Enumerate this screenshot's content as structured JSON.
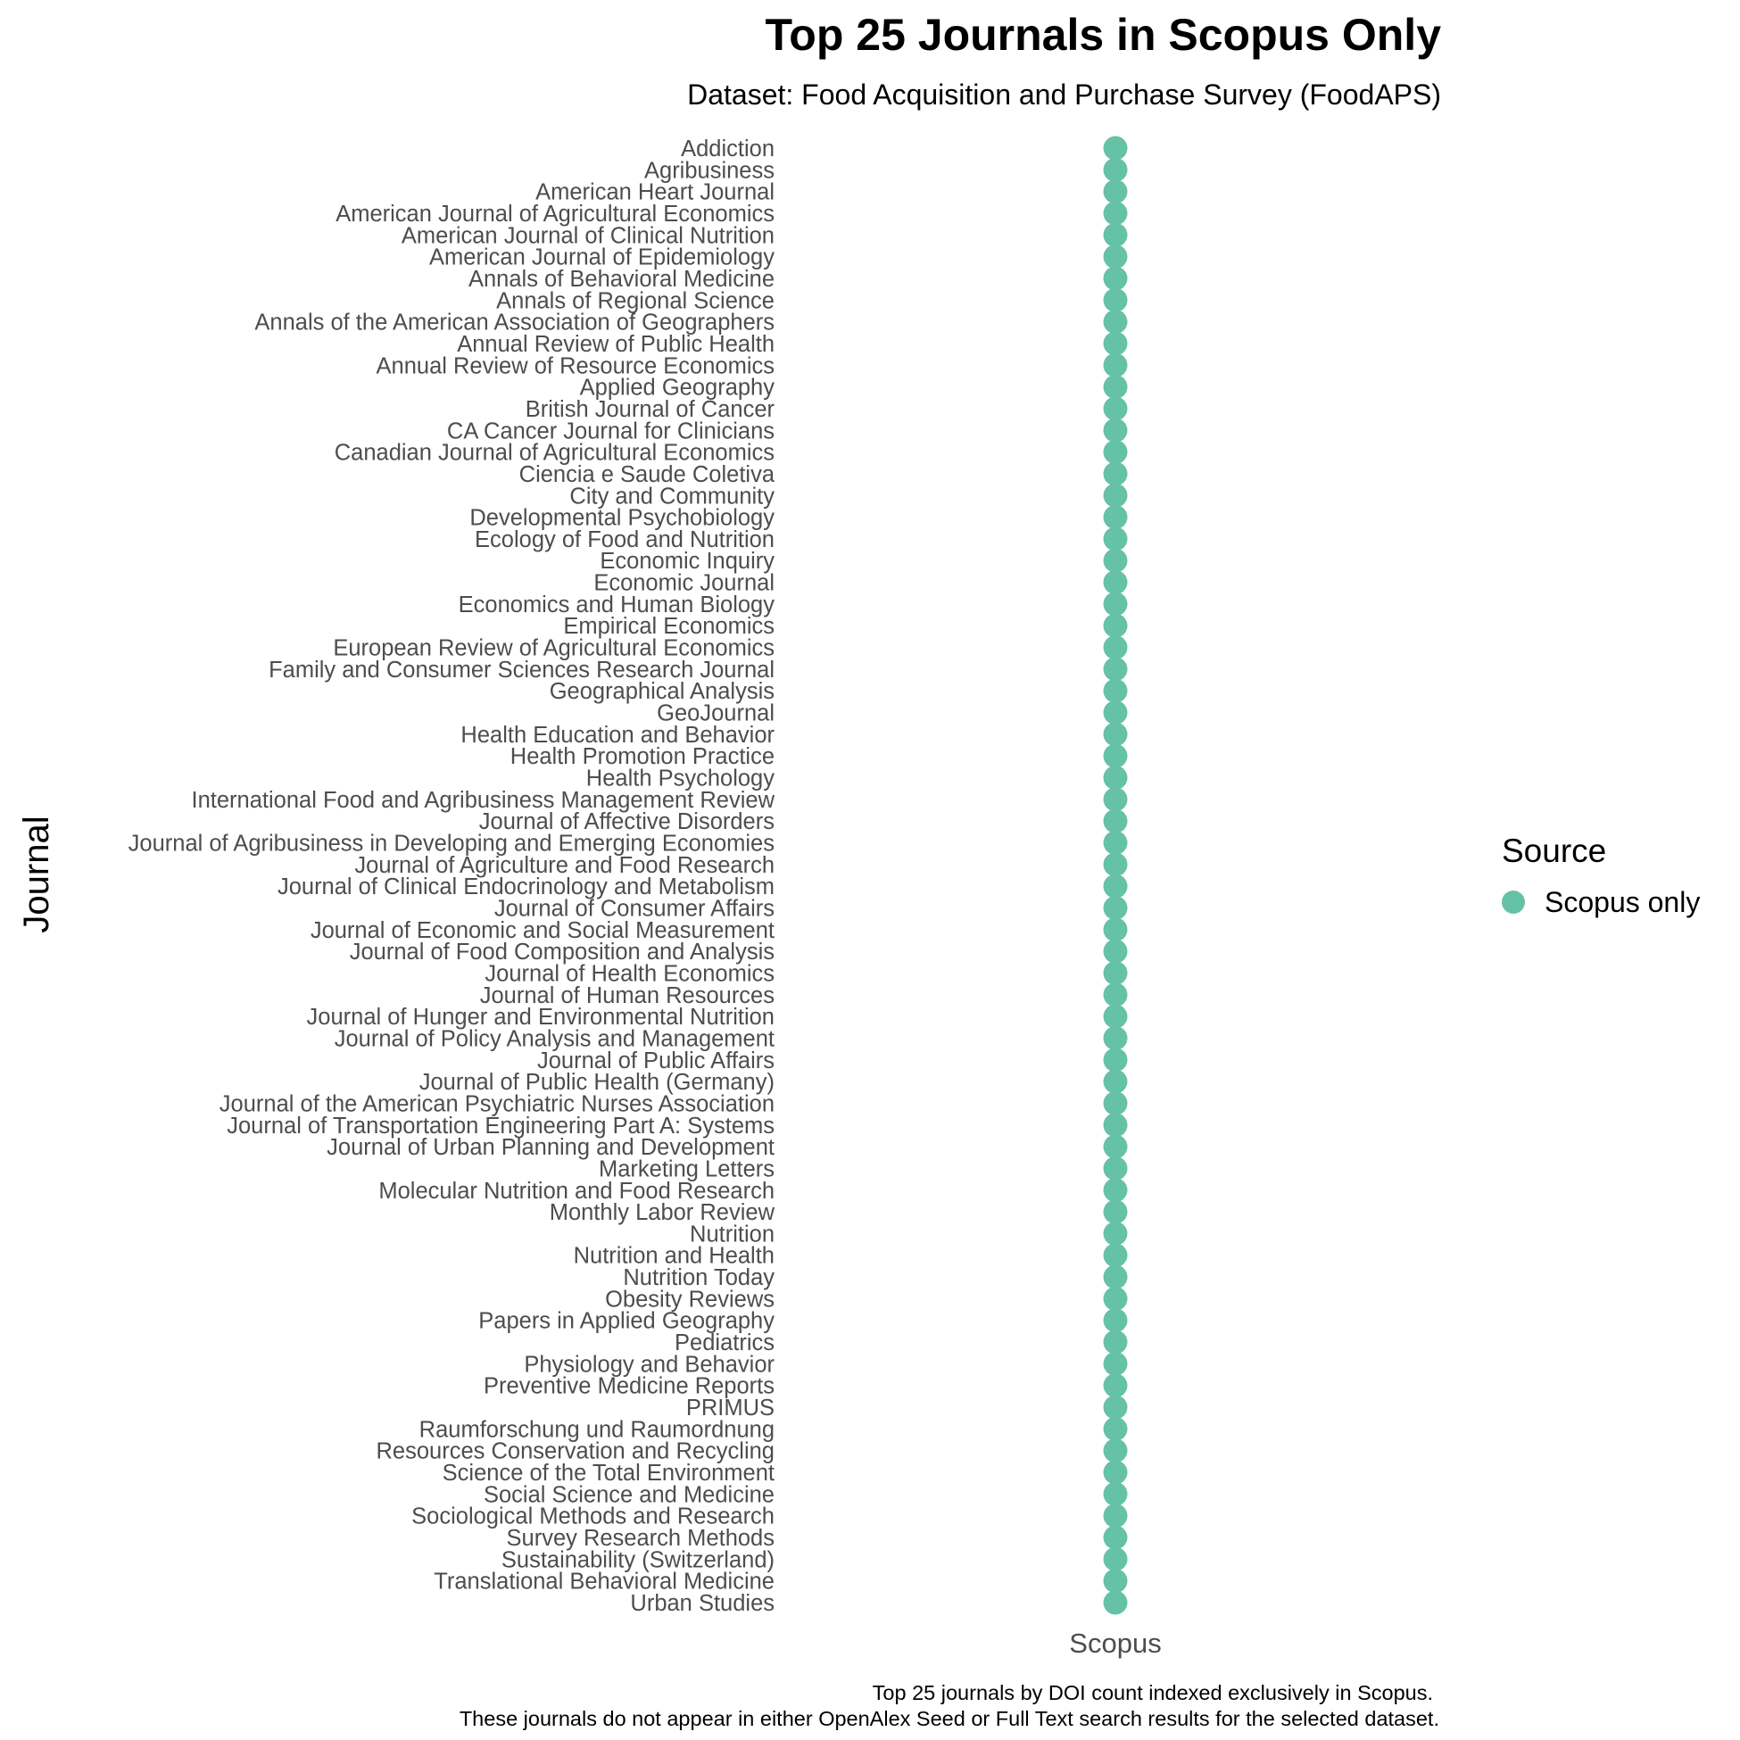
{
  "chart_data": {
    "type": "scatter",
    "title": "Top 25 Journals in Scopus Only",
    "subtitle": "Dataset: Food Acquisition and Purchase Survey (FoodAPS)",
    "ylabel": "Journal",
    "xlabel": "",
    "x_categories": [
      "Scopus"
    ],
    "y_categories": [
      "Addiction",
      "Agribusiness",
      "American Heart Journal",
      "American Journal of Agricultural Economics",
      "American Journal of Clinical Nutrition",
      "American Journal of Epidemiology",
      "Annals of Behavioral Medicine",
      "Annals of Regional Science",
      "Annals of the American Association of Geographers",
      "Annual Review of Public Health",
      "Annual Review of Resource Economics",
      "Applied Geography",
      "British Journal of Cancer",
      "CA Cancer Journal for Clinicians",
      "Canadian Journal of Agricultural Economics",
      "Ciencia e Saude Coletiva",
      "City and Community",
      "Developmental Psychobiology",
      "Ecology of Food and Nutrition",
      "Economic Inquiry",
      "Economic Journal",
      "Economics and Human Biology",
      "Empirical Economics",
      "European Review of Agricultural Economics",
      "Family and Consumer Sciences Research Journal",
      "Geographical Analysis",
      "GeoJournal",
      "Health Education and Behavior",
      "Health Promotion Practice",
      "Health Psychology",
      "International Food and Agribusiness Management Review",
      "Journal of Affective Disorders",
      "Journal of Agribusiness in Developing and Emerging Economies",
      "Journal of Agriculture and Food Research",
      "Journal of Clinical Endocrinology and Metabolism",
      "Journal of Consumer Affairs",
      "Journal of Economic and Social Measurement",
      "Journal of Food Composition and Analysis",
      "Journal of Health Economics",
      "Journal of Human Resources",
      "Journal of Hunger and Environmental Nutrition",
      "Journal of Policy Analysis and Management",
      "Journal of Public Affairs",
      "Journal of Public Health (Germany)",
      "Journal of the American Psychiatric Nurses Association",
      "Journal of Transportation Engineering Part A: Systems",
      "Journal of Urban Planning and Development",
      "Marketing Letters",
      "Molecular Nutrition and Food Research",
      "Monthly Labor Review",
      "Nutrition",
      "Nutrition and Health",
      "Nutrition Today",
      "Obesity Reviews",
      "Papers in Applied Geography",
      "Pediatrics",
      "Physiology and Behavior",
      "Preventive Medicine Reports",
      "PRIMUS",
      "Raumforschung und Raumordnung",
      "Resources Conservation and Recycling",
      "Science of the Total Environment",
      "Social Science and Medicine",
      "Sociological Methods and Research",
      "Survey Research Methods",
      "Sustainability (Switzerland)",
      "Translational Behavioral Medicine",
      "Urban Studies"
    ],
    "series": [
      {
        "name": "Scopus only",
        "color": "#66c2a5",
        "x": "Scopus"
      }
    ],
    "legend": {
      "title": "Source",
      "position": "right"
    },
    "grid": false,
    "caption": [
      "Top 25 journals by DOI count indexed exclusively in Scopus.",
      "These journals do not appear in either OpenAlex Seed or Full Text search results for the selected dataset."
    ]
  }
}
